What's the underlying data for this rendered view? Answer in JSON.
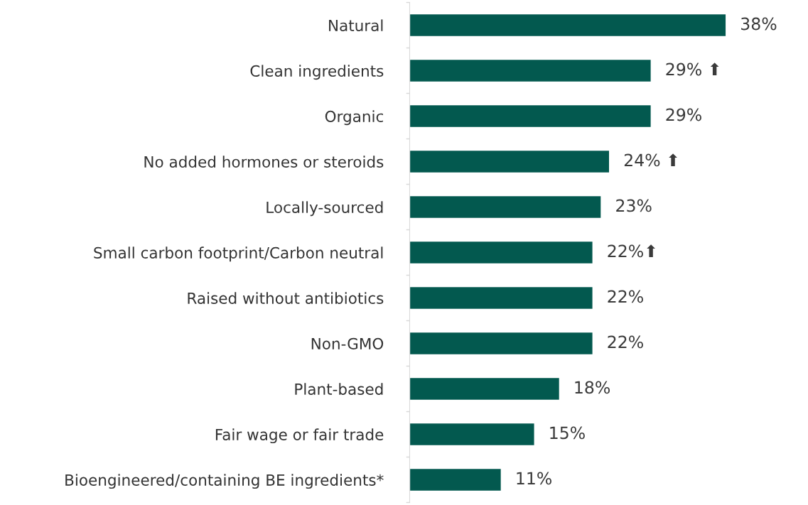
{
  "chart_data": {
    "type": "bar",
    "orientation": "horizontal",
    "categories": [
      "Natural",
      "Clean ingredients",
      "Organic",
      "No added hormones or steroids",
      "Locally-sourced",
      "Small carbon footprint/Carbon neutral",
      "Raised without antibiotics",
      "Non-GMO",
      "Plant-based",
      "Fair wage or fair trade",
      "Bioengineered/containing BE ingredients*"
    ],
    "values": [
      38,
      29,
      29,
      24,
      23,
      22,
      22,
      22,
      18,
      15,
      11
    ],
    "value_labels": [
      "38%",
      "29% ⬆",
      "29%",
      "24% ⬆",
      "23%",
      "22%⬆",
      "22%",
      "22%",
      "18%",
      "15%",
      "11%"
    ],
    "color": "#03594f",
    "grid": false,
    "legend": false
  }
}
